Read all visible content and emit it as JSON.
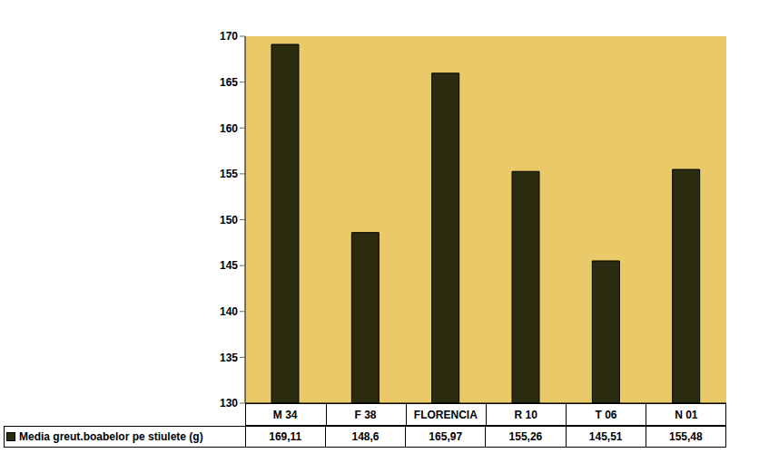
{
  "chart_data": {
    "type": "bar",
    "categories": [
      "M 34",
      "F 38",
      "FLORENCIA",
      "R 10",
      "T 06",
      "N 01"
    ],
    "series": [
      {
        "name": "Media greut.boabelor pe stiulete (g)",
        "color": "#2b2b10",
        "values": [
          169.11,
          148.6,
          165.97,
          155.26,
          145.51,
          155.48
        ],
        "value_labels": [
          "169,11",
          "148,6",
          "165,97",
          "155,26",
          "145,51",
          "155,48"
        ]
      }
    ],
    "ylim": [
      130,
      170
    ],
    "yticks": [
      130,
      135,
      140,
      145,
      150,
      155,
      160,
      165,
      170
    ],
    "grid": false,
    "data_labels": true
  }
}
